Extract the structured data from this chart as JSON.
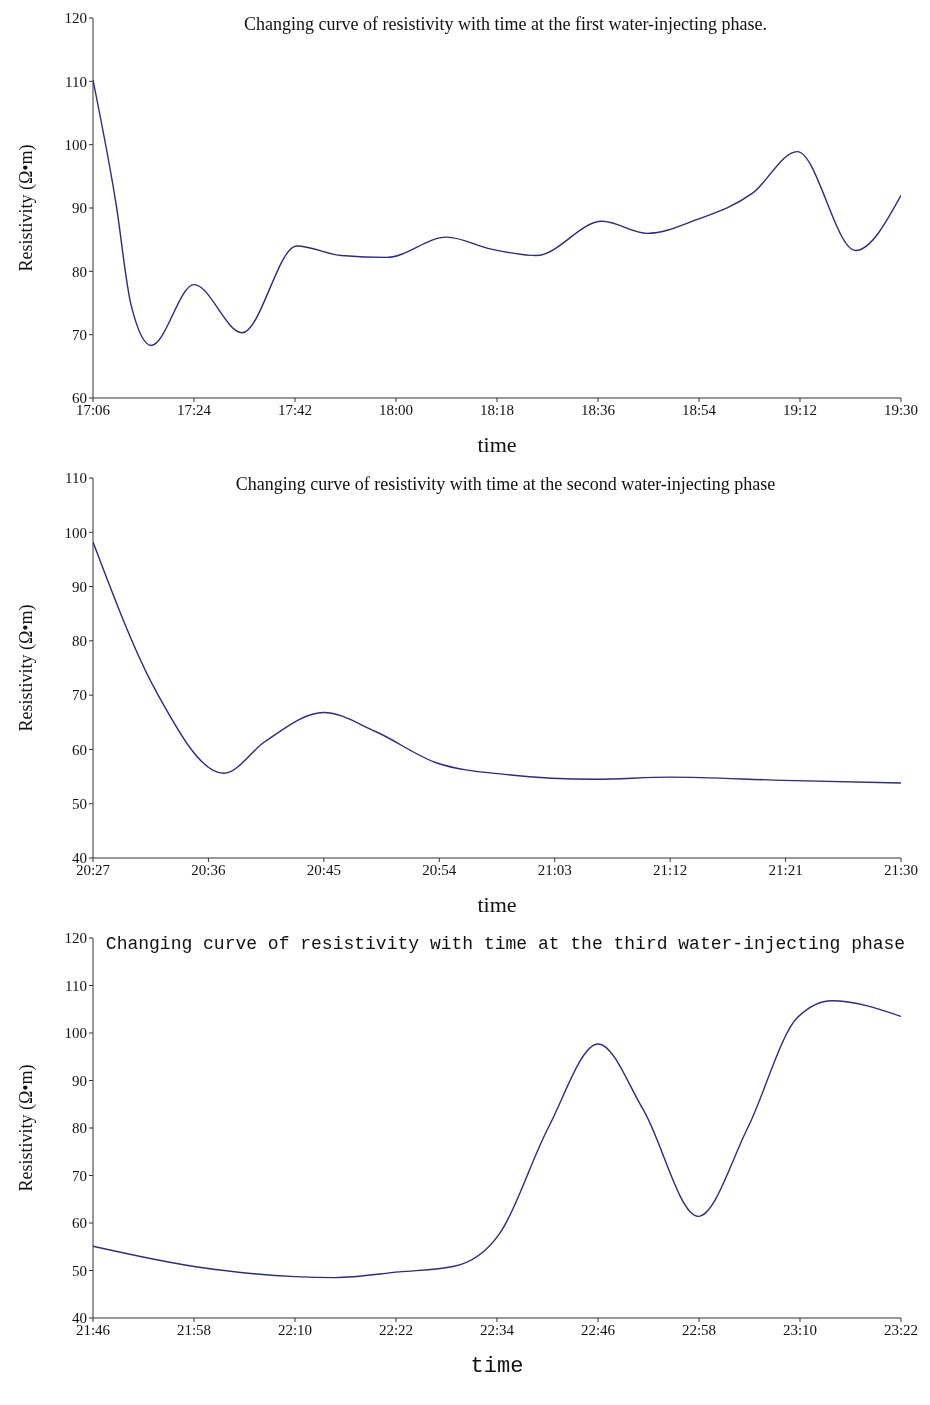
{
  "chart_data": [
    {
      "type": "line",
      "title": "Changing curve of resistivity with time at the first water-injecting phase.",
      "xlabel": "time",
      "ylabel": "Resistivity  (Ω•m)",
      "x": [
        17.1,
        17.168,
        17.213,
        17.273,
        17.4,
        17.543,
        17.705,
        17.838,
        17.972,
        18.15,
        18.283,
        18.417,
        18.612,
        18.747,
        18.895,
        19.058,
        19.192,
        19.365,
        19.5
      ],
      "series": [
        {
          "color": "#2b2a85",
          "values": [
            110.2,
            90.8,
            74.7,
            68.3,
            77.9,
            70.3,
            84,
            82.5,
            82.2,
            85.4,
            83.5,
            82.5,
            87.9,
            86,
            88.2,
            92.3,
            98.9,
            83.3,
            92
          ]
        }
      ],
      "xlim": [
        17.1,
        19.5
      ],
      "xticks": [
        {
          "value": 17.1,
          "label": "17:06"
        },
        {
          "value": 17.4,
          "label": "17:24"
        },
        {
          "value": 17.7,
          "label": "17:42"
        },
        {
          "value": 18.0,
          "label": "18:00"
        },
        {
          "value": 18.3,
          "label": "18:18"
        },
        {
          "value": 18.6,
          "label": "18:36"
        },
        {
          "value": 18.9,
          "label": "18:54"
        },
        {
          "value": 19.2,
          "label": "19:12"
        },
        {
          "value": 19.5,
          "label": "19:30"
        }
      ],
      "ylim": [
        60,
        120
      ],
      "yticks": [
        60,
        70,
        80,
        90,
        100,
        110,
        120
      ],
      "grid": false,
      "legend": false
    },
    {
      "type": "line",
      "title": "Changing curve of resistivity with time at the second water-injecting phase",
      "xlabel": "time",
      "ylabel": "Resistivity  (Ω•m)",
      "x": [
        20.45,
        20.532,
        20.62,
        20.674,
        20.75,
        20.817,
        20.897,
        20.985,
        21.102,
        21.2,
        21.348,
        21.5
      ],
      "series": [
        {
          "color": "#2b2a85",
          "values": [
            98.2,
            70.7,
            55.6,
            61.5,
            66.8,
            63.3,
            57.5,
            55.4,
            54.5,
            54.9,
            54.3,
            53.8
          ]
        }
      ],
      "xlim": [
        20.45,
        21.5
      ],
      "xticks": [
        {
          "value": 20.45,
          "label": "20:27"
        },
        {
          "value": 20.6,
          "label": "20:36"
        },
        {
          "value": 20.75,
          "label": "20:45"
        },
        {
          "value": 20.9,
          "label": "20:54"
        },
        {
          "value": 21.05,
          "label": "21:03"
        },
        {
          "value": 21.2,
          "label": "21:12"
        },
        {
          "value": 21.35,
          "label": "21:21"
        },
        {
          "value": 21.5,
          "label": "21:30"
        }
      ],
      "ylim": [
        40,
        110
      ],
      "yticks": [
        40,
        50,
        60,
        70,
        80,
        90,
        100,
        110
      ],
      "grid": false,
      "legend": false
    },
    {
      "type": "line",
      "title": "Changing curve of resistivity with time at the third water-injecting phase",
      "xlabel": "time",
      "ylabel": "Resistivity (Ω•m)",
      "x": [
        21.7667,
        21.97,
        22.167,
        22.245,
        22.373,
        22.482,
        22.57,
        22.668,
        22.767,
        22.856,
        22.965,
        23.063,
        23.162,
        23.23,
        23.3667
      ],
      "series": [
        {
          "color": "#2b2a85",
          "values": [
            55.1,
            50.8,
            48.7,
            48.5,
            49.7,
            50.9,
            57.5,
            80,
            97.7,
            83.9,
            61.4,
            80,
            103.3,
            106.8,
            103.5
          ]
        }
      ],
      "xlim": [
        21.7667,
        23.3667
      ],
      "xticks": [
        {
          "value": 21.7667,
          "label": "21:46"
        },
        {
          "value": 21.9667,
          "label": "21:58"
        },
        {
          "value": 22.1667,
          "label": "22:10"
        },
        {
          "value": 22.3667,
          "label": "22:22"
        },
        {
          "value": 22.5667,
          "label": "22:34"
        },
        {
          "value": 22.7667,
          "label": "22:46"
        },
        {
          "value": 22.9667,
          "label": "22:58"
        },
        {
          "value": 23.1667,
          "label": "23:10"
        },
        {
          "value": 23.3667,
          "label": "23:22"
        }
      ],
      "ylim": [
        40,
        120
      ],
      "yticks": [
        40,
        50,
        60,
        70,
        80,
        90,
        100,
        110,
        120
      ],
      "grid": false,
      "legend": false
    }
  ]
}
